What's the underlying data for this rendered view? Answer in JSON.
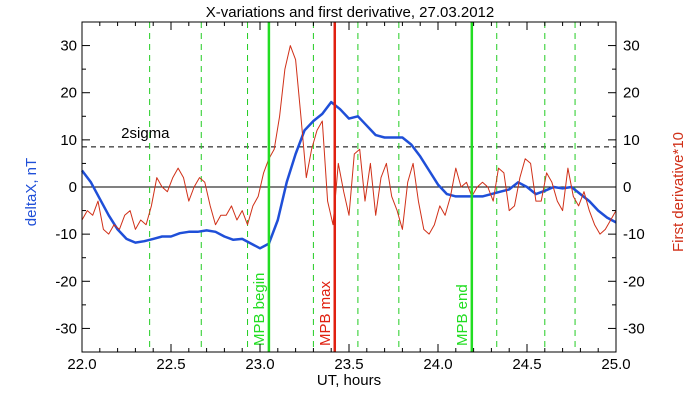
{
  "chart_data": {
    "type": "line",
    "title": "X-variations and first derivative, 27.03.2012",
    "xlabel": "UT, hours",
    "ylabel_left": "deltaX, nT",
    "ylabel_right": "First derivative*10",
    "xlim": [
      22.0,
      25.0
    ],
    "ylim": [
      -35,
      35
    ],
    "x_ticks": [
      "22.0",
      "22.5",
      "23.0",
      "23.5",
      "24.0",
      "24.5",
      "25.0"
    ],
    "y_ticks": [
      "-30",
      "-20",
      "-10",
      "0",
      "10",
      "20",
      "30"
    ],
    "threshold": {
      "label": "2sigma",
      "value": 8.5
    },
    "colors": {
      "deltaX": "#1f4fd8",
      "derivative": "#d03018",
      "mpb": "#22dd22",
      "mpb_max": "#e02010",
      "dashed_green": "#22cc22"
    },
    "series": [
      {
        "key": "deltaX",
        "x": [
          22.0,
          22.05,
          22.1,
          22.15,
          22.2,
          22.25,
          22.3,
          22.35,
          22.4,
          22.45,
          22.5,
          22.55,
          22.6,
          22.65,
          22.7,
          22.75,
          22.8,
          22.85,
          22.9,
          22.95,
          23.0,
          23.05,
          23.1,
          23.15,
          23.2,
          23.25,
          23.3,
          23.35,
          23.4,
          23.45,
          23.5,
          23.55,
          23.6,
          23.65,
          23.7,
          23.75,
          23.8,
          23.85,
          23.9,
          23.95,
          24.0,
          24.05,
          24.1,
          24.15,
          24.2,
          24.25,
          24.3,
          24.35,
          24.4,
          24.45,
          24.5,
          24.55,
          24.6,
          24.65,
          24.7,
          24.75,
          24.8,
          24.85,
          24.9,
          24.95,
          25.0
        ],
        "y": [
          3.5,
          1.0,
          -2.5,
          -6.0,
          -9.0,
          -11.0,
          -11.8,
          -11.5,
          -11.0,
          -10.5,
          -10.5,
          -9.8,
          -9.5,
          -9.5,
          -9.2,
          -9.5,
          -10.5,
          -11.2,
          -11.0,
          -12.0,
          -13.0,
          -12.0,
          -7.0,
          1.0,
          7.0,
          12.0,
          14.0,
          15.5,
          18.0,
          16.5,
          14.5,
          15.0,
          13.0,
          11.0,
          10.5,
          10.5,
          10.5,
          9.0,
          6.5,
          3.5,
          0.5,
          -1.5,
          -2.0,
          -2.0,
          -2.0,
          -2.0,
          -1.5,
          -1.0,
          -0.5,
          1.0,
          0.0,
          -1.5,
          -0.8,
          0.0,
          -0.3,
          0.0,
          -1.5,
          -3.0,
          -5.0,
          -6.5,
          -7.5
        ]
      },
      {
        "key": "derivative",
        "x": [
          22.0,
          22.03,
          22.06,
          22.09,
          22.12,
          22.15,
          22.18,
          22.21,
          22.24,
          22.27,
          22.3,
          22.33,
          22.36,
          22.39,
          22.42,
          22.45,
          22.48,
          22.51,
          22.54,
          22.57,
          22.6,
          22.63,
          22.66,
          22.69,
          22.72,
          22.75,
          22.78,
          22.81,
          22.84,
          22.87,
          22.9,
          22.93,
          22.96,
          22.99,
          23.02,
          23.05,
          23.08,
          23.11,
          23.14,
          23.17,
          23.2,
          23.23,
          23.26,
          23.29,
          23.32,
          23.35,
          23.38,
          23.41,
          23.44,
          23.47,
          23.5,
          23.53,
          23.56,
          23.59,
          23.62,
          23.65,
          23.68,
          23.71,
          23.74,
          23.77,
          23.8,
          23.83,
          23.86,
          23.89,
          23.92,
          23.95,
          23.98,
          24.01,
          24.04,
          24.07,
          24.1,
          24.13,
          24.16,
          24.19,
          24.22,
          24.25,
          24.28,
          24.31,
          24.34,
          24.37,
          24.4,
          24.43,
          24.46,
          24.49,
          24.52,
          24.55,
          24.58,
          24.61,
          24.64,
          24.67,
          24.7,
          24.73,
          24.76,
          24.79,
          24.82,
          24.85,
          24.88,
          24.91,
          24.94,
          24.97,
          25.0
        ],
        "y": [
          -7,
          -5,
          -6,
          -3,
          -9,
          -10,
          -8,
          -9,
          -6,
          -5,
          -9,
          -7,
          -8,
          -4,
          2,
          0,
          -1,
          2,
          4,
          2,
          -3,
          0,
          2,
          1,
          -4,
          -8,
          -6,
          -6,
          -4,
          -7,
          -5,
          -8,
          -4,
          -2,
          3,
          6,
          8,
          15,
          25,
          30,
          27,
          15,
          2,
          8,
          12,
          14,
          -3,
          -8,
          5,
          -1,
          -6,
          7,
          8,
          -3,
          5,
          -6,
          2,
          5,
          -2,
          -5,
          -9,
          1,
          5,
          -3,
          -9,
          -10,
          -8,
          -4,
          -6,
          -2,
          4,
          0,
          1,
          -2,
          0,
          1,
          0,
          -3,
          4,
          3,
          -5,
          -4,
          2,
          6,
          5,
          -3,
          -3,
          3,
          1,
          -3,
          -5,
          4,
          -2,
          -4,
          -1,
          -5,
          -8,
          -10,
          -9,
          -7,
          -5
        ]
      }
    ],
    "vertical_markers": [
      {
        "x": 23.05,
        "label": "MPB begin",
        "kind": "mpb"
      },
      {
        "x": 23.42,
        "label": "MPB max",
        "kind": "mpb_max"
      },
      {
        "x": 24.19,
        "label": "MPB end",
        "kind": "mpb"
      }
    ],
    "dashed_verticals": [
      22.38,
      22.67,
      22.93,
      23.3,
      23.55,
      23.78,
      24.33,
      24.6,
      24.77
    ]
  }
}
